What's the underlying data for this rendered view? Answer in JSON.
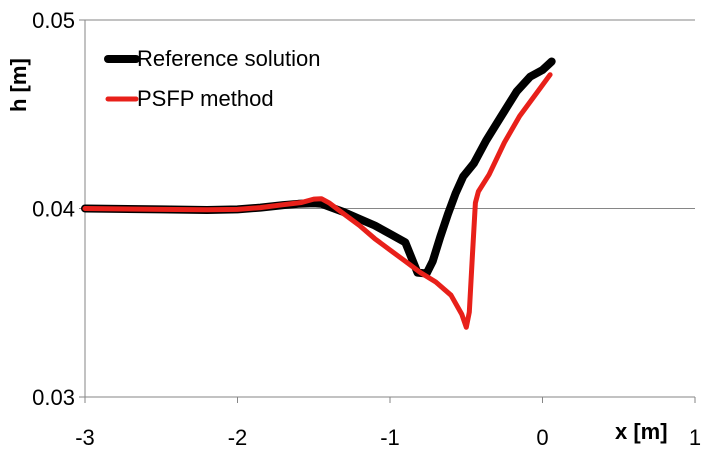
{
  "chart_data": {
    "type": "line",
    "xlabel": "x [m]",
    "ylabel": "h [m]",
    "xlim": [
      -3,
      1
    ],
    "ylim": [
      0.03,
      0.05
    ],
    "x_ticks": [
      "-3",
      "-2",
      "-1",
      "0",
      "1"
    ],
    "y_ticks": [
      "0.03",
      "0.04",
      "0.05"
    ],
    "grid": "horizontal",
    "legend_position": "top-left",
    "series": [
      {
        "name": "Reference solution",
        "color": "#000000",
        "points": [
          [
            -3.0,
            0.04
          ],
          [
            -2.5,
            0.03995
          ],
          [
            -2.2,
            0.03992
          ],
          [
            -2.0,
            0.03995
          ],
          [
            -1.85,
            0.04005
          ],
          [
            -1.7,
            0.04018
          ],
          [
            -1.6,
            0.04025
          ],
          [
            -1.5,
            0.04028
          ],
          [
            -1.45,
            0.04025
          ],
          [
            -1.4,
            0.0401
          ],
          [
            -1.3,
            0.0398
          ],
          [
            -1.2,
            0.03945
          ],
          [
            -1.1,
            0.0391
          ],
          [
            -1.0,
            0.03865
          ],
          [
            -0.9,
            0.0382
          ],
          [
            -0.82,
            0.0366
          ],
          [
            -0.76,
            0.03655
          ],
          [
            -0.72,
            0.0372
          ],
          [
            -0.67,
            0.0385
          ],
          [
            -0.62,
            0.0397
          ],
          [
            -0.57,
            0.0408
          ],
          [
            -0.52,
            0.0417
          ],
          [
            -0.45,
            0.0424
          ],
          [
            -0.37,
            0.0436
          ],
          [
            -0.27,
            0.0449
          ],
          [
            -0.17,
            0.0462
          ],
          [
            -0.08,
            0.047
          ],
          [
            0.0,
            0.04735
          ],
          [
            0.06,
            0.0478
          ]
        ]
      },
      {
        "name": "PSFP method",
        "color": "#e8201a",
        "points": [
          [
            -3.0,
            0.04
          ],
          [
            -2.5,
            0.03995
          ],
          [
            -2.2,
            0.03993
          ],
          [
            -2.0,
            0.03995
          ],
          [
            -1.85,
            0.04005
          ],
          [
            -1.7,
            0.0402
          ],
          [
            -1.58,
            0.04032
          ],
          [
            -1.5,
            0.0405
          ],
          [
            -1.45,
            0.04052
          ],
          [
            -1.4,
            0.0403
          ],
          [
            -1.3,
            0.0397
          ],
          [
            -1.2,
            0.0391
          ],
          [
            -1.1,
            0.0384
          ],
          [
            -1.0,
            0.0378
          ],
          [
            -0.9,
            0.0372
          ],
          [
            -0.8,
            0.0366
          ],
          [
            -0.7,
            0.0361
          ],
          [
            -0.6,
            0.0354
          ],
          [
            -0.53,
            0.0344
          ],
          [
            -0.5,
            0.0337
          ],
          [
            -0.48,
            0.0345
          ],
          [
            -0.46,
            0.0375
          ],
          [
            -0.44,
            0.0403
          ],
          [
            -0.42,
            0.0409
          ],
          [
            -0.35,
            0.0418
          ],
          [
            -0.25,
            0.0435
          ],
          [
            -0.15,
            0.0449
          ],
          [
            -0.05,
            0.046
          ],
          [
            0.05,
            0.0471
          ]
        ]
      }
    ]
  }
}
